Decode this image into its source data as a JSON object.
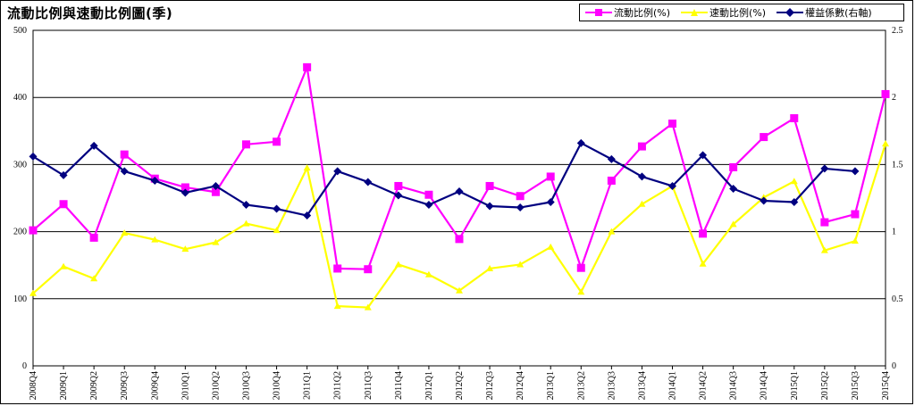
{
  "chart_data": {
    "type": "line",
    "title": "流動比例與速動比例圖(季)",
    "legend_position": "top-right",
    "grid": true,
    "categories": [
      "2008Q4",
      "2009Q1",
      "2009Q2",
      "2009Q3",
      "2009Q4",
      "2010Q1",
      "2010Q2",
      "2010Q3",
      "2010Q4",
      "2011Q1",
      "2011Q2",
      "2011Q3",
      "2011Q4",
      "2012Q1",
      "2012Q2",
      "2012Q3",
      "2012Q4",
      "2013Q1",
      "2013Q2",
      "2013Q3",
      "2013Q4",
      "2014Q1",
      "2014Q2",
      "2014Q3",
      "2014Q4",
      "2015Q1",
      "2015Q2",
      "2015Q3",
      "2015Q4"
    ],
    "y_left": {
      "ylim": [
        0,
        500
      ],
      "ticks": [
        "0",
        "100",
        "200",
        "300",
        "400",
        "500"
      ]
    },
    "y_right": {
      "ylim": [
        0,
        2.5
      ],
      "ticks": [
        "0",
        "0.5",
        "1",
        "1.5",
        "2",
        "2.5"
      ]
    },
    "series": [
      {
        "name": "流動比例(%)",
        "axis": "left",
        "color": "#ff00ff",
        "marker": "square",
        "values": [
          202,
          241,
          191,
          315,
          279,
          266,
          259,
          330,
          334,
          445,
          145,
          144,
          268,
          255,
          189,
          268,
          253,
          282,
          146,
          276,
          327,
          361,
          197,
          296,
          341,
          369,
          214,
          226,
          405
        ]
      },
      {
        "name": "速動比例(%)",
        "axis": "left",
        "color": "#ffff00",
        "marker": "triangle",
        "values": [
          108,
          148,
          130,
          198,
          188,
          174,
          184,
          212,
          202,
          295,
          89,
          87,
          151,
          136,
          112,
          145,
          151,
          177,
          110,
          200,
          241,
          268,
          152,
          211,
          251,
          275,
          172,
          186,
          331
        ]
      },
      {
        "name": "權益係數(右軸)",
        "axis": "right",
        "color": "#000080",
        "marker": "diamond",
        "values": [
          1.56,
          1.42,
          1.64,
          1.45,
          1.38,
          1.29,
          1.34,
          1.2,
          1.17,
          1.12,
          1.45,
          1.37,
          1.27,
          1.2,
          1.3,
          1.19,
          1.18,
          1.22,
          1.66,
          1.54,
          1.41,
          1.34,
          1.57,
          1.32,
          1.23,
          1.22,
          1.47,
          1.45,
          null
        ]
      }
    ]
  }
}
